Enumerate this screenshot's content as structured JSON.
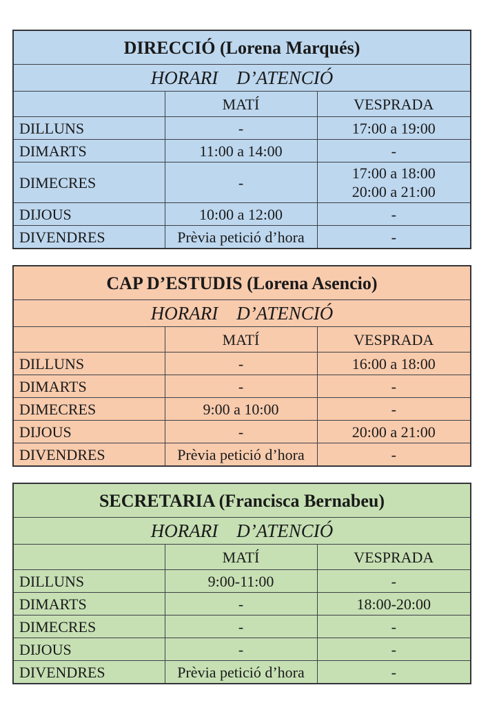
{
  "page": {
    "background": "#ffffff",
    "border_color": "#3d3f46"
  },
  "tables": [
    {
      "title": "DIRECCIÓ (Lorena Marqués)",
      "subtitle": "HORARI    D’ATENCIÓ",
      "color": "#bdd7ee",
      "columns": [
        "",
        "MATÍ",
        "VESPRADA"
      ],
      "rows": [
        {
          "day": "DILLUNS",
          "mati": "-",
          "vesprada": "17:00 a 19:00"
        },
        {
          "day": "DIMARTS",
          "mati": "11:00 a 14:00",
          "vesprada": "-"
        },
        {
          "day": "DIMECRES",
          "mati": "-",
          "vesprada": "17:00 a 18:00\n20:00 a 21:00"
        },
        {
          "day": "DIJOUS",
          "mati": "10:00 a 12:00",
          "vesprada": "-"
        },
        {
          "day": "DIVENDRES",
          "mati": "Prèvia petició d’hora",
          "vesprada": "-"
        }
      ]
    },
    {
      "title": "CAP D’ESTUDIS (Lorena Asencio)",
      "subtitle": "HORARI    D’ATENCIÓ",
      "color": "#f8cbad",
      "columns": [
        "",
        "MATÍ",
        "VESPRADA"
      ],
      "rows": [
        {
          "day": "DILLUNS",
          "mati": "-",
          "vesprada": "16:00 a 18:00"
        },
        {
          "day": "DIMARTS",
          "mati": "-",
          "vesprada": "-"
        },
        {
          "day": "DIMECRES",
          "mati": "9:00 a 10:00",
          "vesprada": "-"
        },
        {
          "day": "DIJOUS",
          "mati": "-",
          "vesprada": "20:00 a 21:00"
        },
        {
          "day": "DIVENDRES",
          "mati": "Prèvia petició d’hora",
          "vesprada": "-"
        }
      ]
    },
    {
      "title": "SECRETARIA (Francisca Bernabeu)",
      "subtitle": "HORARI    D’ATENCIÓ",
      "color": "#c6e0b4",
      "columns": [
        "",
        "MATÍ",
        "VESPRADA"
      ],
      "rows": [
        {
          "day": "DILLUNS",
          "mati": "9:00-11:00",
          "vesprada": "-"
        },
        {
          "day": "DIMARTS",
          "mati": "-",
          "vesprada": "18:00-20:00"
        },
        {
          "day": "DIMECRES",
          "mati": "-",
          "vesprada": "-"
        },
        {
          "day": "DIJOUS",
          "mati": "-",
          "vesprada": "-"
        },
        {
          "day": "DIVENDRES",
          "mati": "Prèvia petició d’hora",
          "vesprada": "-"
        }
      ]
    }
  ]
}
